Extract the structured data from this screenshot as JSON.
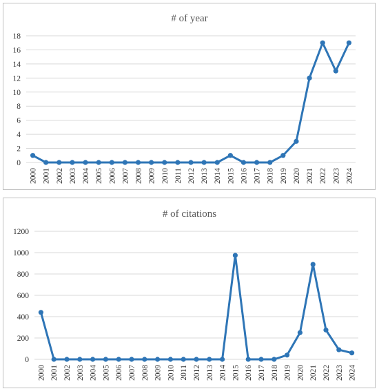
{
  "chart_data": [
    {
      "type": "line",
      "title": "# of year",
      "x": [
        "2000",
        "2001",
        "2002",
        "2003",
        "2004",
        "2005",
        "2006",
        "2007",
        "2008",
        "2009",
        "2010",
        "2011",
        "2012",
        "2013",
        "2014",
        "2015",
        "2016",
        "2017",
        "2018",
        "2019",
        "2020",
        "2021",
        "2022",
        "2023",
        "2024"
      ],
      "series": [
        {
          "values": [
            1,
            0,
            0,
            0,
            0,
            0,
            0,
            0,
            0,
            0,
            0,
            0,
            0,
            0,
            0,
            1,
            0,
            0,
            0,
            1,
            3,
            12,
            17,
            13,
            17
          ]
        }
      ],
      "y_ticks": [
        "0",
        "2",
        "4",
        "6",
        "8",
        "10",
        "12",
        "14",
        "16",
        "18"
      ],
      "ylim": [
        0,
        18
      ],
      "grid": true,
      "legend": "none",
      "color": "#2E75B6"
    },
    {
      "type": "line",
      "title": "# of citations",
      "x": [
        "2000",
        "2001",
        "2002",
        "2003",
        "2004",
        "2005",
        "2006",
        "2007",
        "2008",
        "2009",
        "2010",
        "2011",
        "2012",
        "2013",
        "2014",
        "2015",
        "2016",
        "2017",
        "2018",
        "2019",
        "2020",
        "2021",
        "2022",
        "2023",
        "2024"
      ],
      "series": [
        {
          "values": [
            440,
            0,
            0,
            0,
            0,
            0,
            0,
            0,
            0,
            0,
            0,
            0,
            0,
            0,
            0,
            975,
            0,
            0,
            0,
            40,
            250,
            890,
            275,
            90,
            60
          ]
        }
      ],
      "y_ticks": [
        "0",
        "200",
        "400",
        "600",
        "800",
        "1000",
        "1200"
      ],
      "ylim": [
        0,
        1200
      ],
      "grid": true,
      "legend": "none",
      "color": "#2E75B6"
    }
  ]
}
